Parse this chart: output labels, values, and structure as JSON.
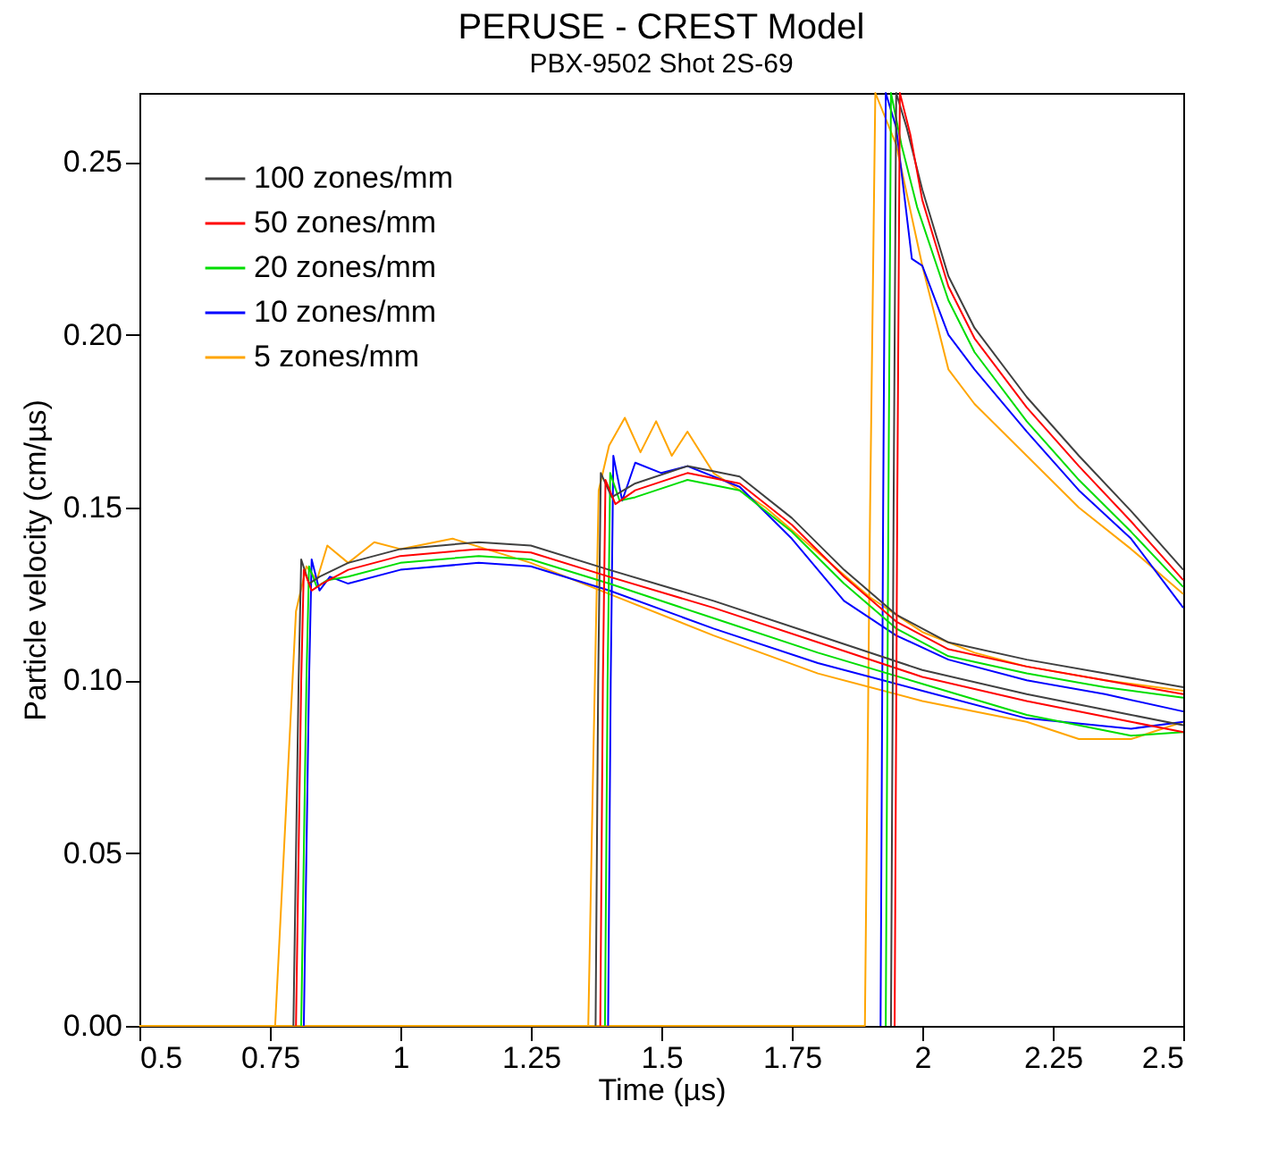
{
  "chart_data": {
    "type": "line",
    "title": "PERUSE - CREST Model",
    "subtitle": "PBX-9502  Shot 2S-69",
    "xlabel": "Time (µs)",
    "ylabel": "Particle velocity (cm/µs)",
    "xlim": [
      0.5,
      2.5
    ],
    "ylim": [
      0,
      0.27
    ],
    "xticks": [
      0.5,
      0.75,
      1,
      1.25,
      1.5,
      1.75,
      2,
      2.25,
      2.5
    ],
    "yticks": [
      {
        "value": 0,
        "label": "0.00"
      },
      {
        "value": 0.05,
        "label": "0.05"
      },
      {
        "value": 0.1,
        "label": "0.10"
      },
      {
        "value": 0.15,
        "label": "0.15"
      },
      {
        "value": 0.2,
        "label": "0.20"
      },
      {
        "value": 0.25,
        "label": "0.25"
      }
    ],
    "legend": "top left",
    "series": [
      {
        "name": "5 zones/mm",
        "color": "#ffa500",
        "x": [
          0.5,
          1.89,
          1.9,
          1.91,
          1.95,
          2.0,
          2.05,
          2.1,
          2.2,
          2.3,
          2.4,
          2.5
        ],
        "values": [
          0,
          0,
          0.15,
          0.27,
          0.255,
          0.22,
          0.19,
          0.18,
          0.165,
          0.15,
          0.138,
          0.125
        ]
      },
      {
        "color": "#ffa500",
        "x": [
          0.76,
          0.78,
          0.8,
          0.82,
          0.84,
          0.86,
          0.9,
          0.95,
          1,
          1.1,
          1.25,
          1.4,
          1.6,
          1.8,
          2,
          2.2,
          2.3,
          2.4,
          2.5
        ],
        "values": [
          0,
          0.06,
          0.12,
          0.133,
          0.129,
          0.139,
          0.134,
          0.14,
          0.138,
          0.141,
          0.134,
          0.125,
          0.113,
          0.102,
          0.094,
          0.088,
          0.083,
          0.083,
          0.088
        ]
      },
      {
        "color": "#ffa500",
        "x": [
          1.36,
          1.37,
          1.38,
          1.4,
          1.43,
          1.46,
          1.49,
          1.52,
          1.55,
          1.6,
          1.7,
          1.8,
          1.9,
          2.0,
          2.1,
          2.2,
          2.35,
          2.5
        ],
        "values": [
          0,
          0.08,
          0.155,
          0.168,
          0.176,
          0.166,
          0.175,
          0.165,
          0.172,
          0.16,
          0.15,
          0.137,
          0.124,
          0.114,
          0.108,
          0.104,
          0.1,
          0.097
        ]
      },
      {
        "name": "10 zones/mm",
        "color": "#0000ff",
        "x": [
          0.815,
          0.825,
          0.83,
          0.845,
          0.865,
          0.9,
          1,
          1.15,
          1.25,
          1.4,
          1.6,
          1.8,
          2,
          2.2,
          2.4,
          2.5
        ],
        "values": [
          0,
          0.1,
          0.135,
          0.126,
          0.13,
          0.128,
          0.132,
          0.134,
          0.133,
          0.126,
          0.115,
          0.105,
          0.097,
          0.089,
          0.086,
          0.088
        ]
      },
      {
        "color": "#0000ff",
        "x": [
          1.398,
          1.403,
          1.408,
          1.425,
          1.45,
          1.5,
          1.55,
          1.65,
          1.75,
          1.85,
          1.95,
          2.05,
          2.2,
          2.35,
          2.5
        ],
        "values": [
          0,
          0.1,
          0.165,
          0.152,
          0.163,
          0.16,
          0.162,
          0.156,
          0.141,
          0.123,
          0.113,
          0.106,
          0.1,
          0.096,
          0.091
        ]
      },
      {
        "color": "#0000ff",
        "x": [
          1.92,
          1.925,
          1.93,
          1.95,
          1.98,
          2.0,
          2.05,
          2.1,
          2.2,
          2.3,
          2.4,
          2.5
        ],
        "values": [
          0,
          0.15,
          0.27,
          0.26,
          0.222,
          0.22,
          0.2,
          0.19,
          0.172,
          0.155,
          0.141,
          0.121
        ]
      },
      {
        "name": "20 zones/mm",
        "color": "#00dd00",
        "x": [
          0.81,
          0.82,
          0.825,
          0.84,
          0.86,
          0.9,
          1,
          1.15,
          1.25,
          1.4,
          1.6,
          1.8,
          2,
          2.2,
          2.4,
          2.5
        ],
        "values": [
          0,
          0.1,
          0.133,
          0.127,
          0.129,
          0.13,
          0.134,
          0.136,
          0.135,
          0.128,
          0.118,
          0.108,
          0.099,
          0.09,
          0.084,
          0.085
        ]
      },
      {
        "color": "#00dd00",
        "x": [
          1.392,
          1.397,
          1.402,
          1.42,
          1.45,
          1.55,
          1.65,
          1.75,
          1.85,
          1.95,
          2.05,
          2.2,
          2.35,
          2.5
        ],
        "values": [
          0,
          0.1,
          0.16,
          0.152,
          0.153,
          0.158,
          0.155,
          0.143,
          0.128,
          0.115,
          0.107,
          0.102,
          0.098,
          0.095
        ]
      },
      {
        "color": "#00dd00",
        "x": [
          1.93,
          1.935,
          1.94,
          1.96,
          1.99,
          2.05,
          2.1,
          2.2,
          2.3,
          2.4,
          2.5
        ],
        "values": [
          0,
          0.15,
          0.27,
          0.255,
          0.237,
          0.21,
          0.195,
          0.175,
          0.158,
          0.143,
          0.127
        ]
      },
      {
        "color": "#404040",
        "x": [
          0.795,
          0.805,
          0.81,
          0.825,
          0.845,
          0.9,
          1,
          1.15,
          1.25,
          1.4,
          1.6,
          1.8,
          2,
          2.2,
          2.4,
          2.5
        ],
        "values": [
          0,
          0.1,
          0.135,
          0.128,
          0.13,
          0.134,
          0.138,
          0.14,
          0.139,
          0.132,
          0.123,
          0.113,
          0.103,
          0.096,
          0.09,
          0.087
        ]
      },
      {
        "color": "#404040",
        "x": [
          1.374,
          1.379,
          1.384,
          1.405,
          1.45,
          1.55,
          1.65,
          1.75,
          1.85,
          1.95,
          2.05,
          2.2,
          2.35,
          2.5
        ],
        "values": [
          0,
          0.1,
          0.16,
          0.153,
          0.157,
          0.162,
          0.159,
          0.147,
          0.132,
          0.119,
          0.111,
          0.106,
          0.102,
          0.098
        ]
      },
      {
        "name": "50 zones/mm",
        "color": "#ff0000",
        "x": [
          0.8,
          0.81,
          0.815,
          0.83,
          0.85,
          0.9,
          1,
          1.15,
          1.25,
          1.4,
          1.6,
          1.8,
          2,
          2.2,
          2.4,
          2.5
        ],
        "values": [
          0,
          0.1,
          0.132,
          0.126,
          0.128,
          0.132,
          0.136,
          0.138,
          0.137,
          0.13,
          0.121,
          0.111,
          0.101,
          0.094,
          0.088,
          0.085
        ]
      },
      {
        "color": "#ff0000",
        "x": [
          1.383,
          1.388,
          1.393,
          1.412,
          1.45,
          1.55,
          1.65,
          1.75,
          1.85,
          1.95,
          2.05,
          2.2,
          2.35,
          2.5
        ],
        "values": [
          0,
          0.1,
          0.158,
          0.151,
          0.155,
          0.16,
          0.157,
          0.145,
          0.13,
          0.117,
          0.109,
          0.104,
          0.1,
          0.096
        ]
      },
      {
        "name": "100 zones/mm",
        "color": "#404040",
        "x": [
          1.94,
          1.945,
          1.95,
          1.97,
          2.0,
          2.05,
          2.1,
          2.2,
          2.3,
          2.4,
          2.5
        ],
        "values": [
          0,
          0.15,
          0.27,
          0.26,
          0.242,
          0.217,
          0.202,
          0.182,
          0.165,
          0.149,
          0.132
        ]
      },
      {
        "color": "#ff0000",
        "x": [
          1.947,
          1.952,
          1.957,
          1.977,
          2.0,
          2.05,
          2.1,
          2.2,
          2.3,
          2.4,
          2.5
        ],
        "values": [
          0,
          0.15,
          0.27,
          0.258,
          0.239,
          0.214,
          0.199,
          0.179,
          0.162,
          0.146,
          0.129
        ]
      }
    ]
  }
}
